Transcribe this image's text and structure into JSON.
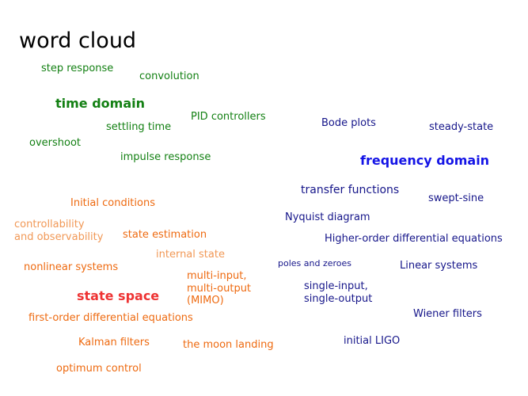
{
  "title": "word cloud",
  "colors": {
    "time_domain": "#138013",
    "state_space": "#ee6a10",
    "state_space_light": "#f19856",
    "frequency_domain": "#16168a",
    "frequency_domain_heading": "#1414e6",
    "state_space_heading": "#ee3333"
  },
  "words": {
    "step_response": "step response",
    "convolution": "convolution",
    "time_domain": "time domain",
    "pid_controllers": "PID controllers",
    "settling_time": "settling time",
    "overshoot": "overshoot",
    "impulse_response": "impulse response",
    "bode_plots": "Bode plots",
    "steady_state": "steady-state",
    "frequency_domain": "frequency domain",
    "transfer_functions": "transfer functions",
    "swept_sine": "swept-sine",
    "nyquist_diagram": "Nyquist diagram",
    "higher_order_de": "Higher-order differential equations",
    "poles_zeroes": "poles and zeroes",
    "linear_systems": "Linear systems",
    "siso_line1": "single-input,",
    "siso_line2": "single-output",
    "wiener_filters": "Wiener filters",
    "initial_ligo": "initial LIGO",
    "initial_conditions": "Initial conditions",
    "controllability_line1": "controllability",
    "controllability_line2": "and observability",
    "state_estimation": "state estimation",
    "internal_state": "internal state",
    "nonlinear_systems": "nonlinear systems",
    "mimo_line1": "multi-input,",
    "mimo_line2": "multi-output",
    "mimo_line3": "(MIMO)",
    "state_space": "state space",
    "first_order_de": "first-order differential equations",
    "kalman_filters": "Kalman filters",
    "moon_landing": "the moon landing",
    "optimum_control": "optimum control"
  }
}
